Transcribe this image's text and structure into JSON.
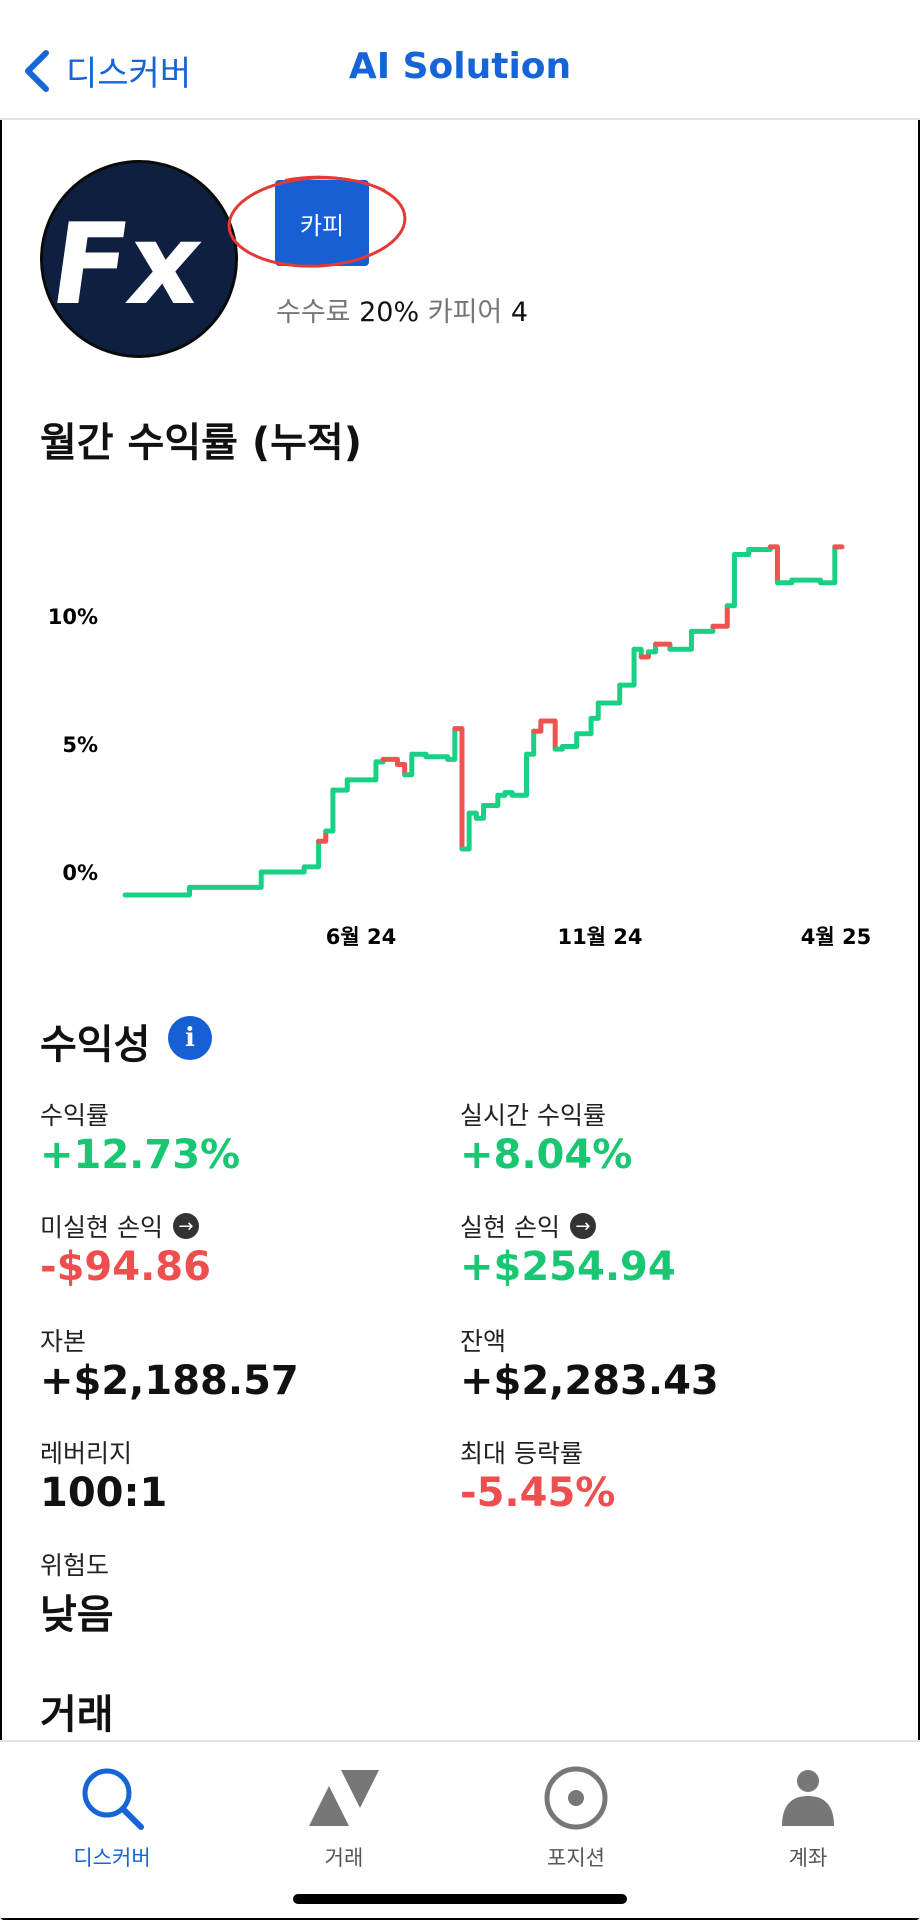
{
  "header": {
    "back_label": "디스커버",
    "title": "AI Solution"
  },
  "profile": {
    "avatar_text": "Fx",
    "copy_button": "카피",
    "fee_label": "수수료",
    "fee_value": "20%",
    "copiers_label": "카피어",
    "copiers_value": "4"
  },
  "chart_section": {
    "title": "월간 수익률 (누적)"
  },
  "chart_data": {
    "type": "line",
    "yticks": [
      "0%",
      "5%",
      "10%"
    ],
    "xticks": [
      "6월 24",
      "11월 24",
      "4월 25"
    ],
    "ylim": [
      -1,
      15
    ],
    "x": [
      0,
      0.09,
      0.19,
      0.21,
      0.23,
      0.25,
      0.27,
      0.28,
      0.29,
      0.31,
      0.34,
      0.35,
      0.36,
      0.38,
      0.39,
      0.4,
      0.42,
      0.45,
      0.46,
      0.47,
      0.48,
      0.49,
      0.5,
      0.52,
      0.53,
      0.54,
      0.56,
      0.57,
      0.58,
      0.6,
      0.61,
      0.63,
      0.65,
      0.66,
      0.68,
      0.69,
      0.71,
      0.72,
      0.73,
      0.74,
      0.76,
      0.79,
      0.81,
      0.82,
      0.84,
      0.85,
      0.87,
      0.88,
      0.9,
      0.91,
      0.93,
      0.95,
      0.97,
      0.99,
      1.0
    ],
    "y": [
      -0.9,
      -0.6,
      0.0,
      0.0,
      0.0,
      0.2,
      1.2,
      1.6,
      3.2,
      3.6,
      3.6,
      4.3,
      4.4,
      4.2,
      3.8,
      4.6,
      4.5,
      4.4,
      5.6,
      0.9,
      2.3,
      2.1,
      2.6,
      3.0,
      3.1,
      3.0,
      4.6,
      5.5,
      5.9,
      4.8,
      4.9,
      5.4,
      6.0,
      6.6,
      6.6,
      7.3,
      8.7,
      8.4,
      8.6,
      8.9,
      8.7,
      9.4,
      9.4,
      9.6,
      10.4,
      12.4,
      12.6,
      12.6,
      12.7,
      11.3,
      11.4,
      11.4,
      11.3,
      12.7,
      12.7
    ],
    "down_segments": [
      6,
      12,
      13,
      18,
      27,
      28,
      37,
      39,
      43,
      48,
      53
    ],
    "up_color": "#19d184",
    "down_color": "#ef5350"
  },
  "profitability": {
    "title": "수익성",
    "info_icon": "info-icon",
    "stats": [
      {
        "label": "수익률",
        "value": "+12.73%",
        "tone": "pos"
      },
      {
        "label": "실시간 수익률",
        "value": "+8.04%",
        "tone": "pos"
      },
      {
        "label": "미실현 손익",
        "value": "-$94.86",
        "tone": "neg",
        "arrow": true
      },
      {
        "label": "실현 손익",
        "value": "+$254.94",
        "tone": "pos",
        "arrow": true
      },
      {
        "label": "자본",
        "value": "+$2,188.57",
        "tone": "neu"
      },
      {
        "label": "잔액",
        "value": "+$2,283.43",
        "tone": "neu"
      },
      {
        "label": "레버리지",
        "value": "100:1",
        "tone": "neu"
      },
      {
        "label": "최대 등락률",
        "value": "-5.45%",
        "tone": "neg"
      },
      {
        "label": "위험도",
        "value": "낮음",
        "tone": "neu"
      }
    ]
  },
  "trades": {
    "title": "거래"
  },
  "tabbar": {
    "items": [
      {
        "label": "디스커버",
        "icon": "search-icon",
        "active": true
      },
      {
        "label": "거래",
        "icon": "triangles-icon",
        "active": false
      },
      {
        "label": "포지션",
        "icon": "target-icon",
        "active": false
      },
      {
        "label": "계좌",
        "icon": "person-icon",
        "active": false
      }
    ],
    "active_color": "#1565d8",
    "inactive_color": "#777777"
  }
}
